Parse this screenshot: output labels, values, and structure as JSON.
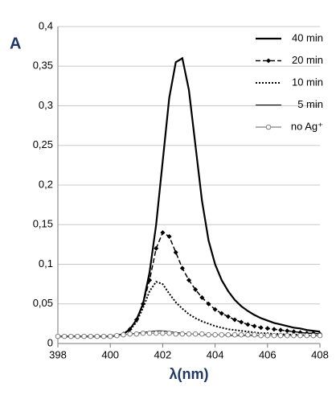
{
  "chart_data": {
    "type": "line",
    "ylabel": "A",
    "xlabel": "λ(nm)",
    "x": [
      398,
      398.25,
      398.5,
      398.75,
      399,
      399.25,
      399.5,
      399.75,
      400,
      400.25,
      400.5,
      400.75,
      401,
      401.25,
      401.5,
      401.75,
      402,
      402.25,
      402.5,
      402.75,
      403,
      403.25,
      403.5,
      403.75,
      404,
      404.25,
      404.5,
      404.75,
      405,
      405.25,
      405.5,
      405.75,
      406,
      406.25,
      406.5,
      406.75,
      407,
      407.25,
      407.5,
      407.75,
      408
    ],
    "xlim": [
      398,
      408
    ],
    "xticks": [
      398,
      400,
      402,
      404,
      406,
      408
    ],
    "ylim": [
      0,
      0.4
    ],
    "yticks": [
      {
        "value": 0,
        "label": "0"
      },
      {
        "value": 0.05,
        "label": "0,05"
      },
      {
        "value": 0.1,
        "label": "0,1"
      },
      {
        "value": 0.15,
        "label": "0,15"
      },
      {
        "value": 0.2,
        "label": "0,2"
      },
      {
        "value": 0.25,
        "label": "0,25"
      },
      {
        "value": 0.3,
        "label": "0,3"
      },
      {
        "value": 0.35,
        "label": "0,35"
      },
      {
        "value": 0.4,
        "label": "0,4"
      }
    ],
    "grid": true,
    "legend": "upper right",
    "series": [
      {
        "name": "40 min",
        "color": "#000000",
        "style": "solid",
        "width": 2.2,
        "values": [
          0.009,
          0.009,
          0.009,
          0.009,
          0.009,
          0.009,
          0.009,
          0.009,
          0.009,
          0.01,
          0.012,
          0.018,
          0.03,
          0.05,
          0.09,
          0.15,
          0.23,
          0.31,
          0.355,
          0.36,
          0.32,
          0.25,
          0.18,
          0.13,
          0.1,
          0.08,
          0.066,
          0.055,
          0.047,
          0.041,
          0.036,
          0.032,
          0.029,
          0.026,
          0.024,
          0.022,
          0.02,
          0.019,
          0.017,
          0.016,
          0.015
        ]
      },
      {
        "name": "20 min",
        "color": "#000000",
        "style": "dashed",
        "width": 1.5,
        "marker": "diamond",
        "values": [
          0.009,
          0.009,
          0.009,
          0.009,
          0.009,
          0.009,
          0.009,
          0.009,
          0.009,
          0.01,
          0.012,
          0.018,
          0.03,
          0.05,
          0.08,
          0.12,
          0.14,
          0.135,
          0.115,
          0.095,
          0.08,
          0.068,
          0.058,
          0.05,
          0.043,
          0.038,
          0.034,
          0.03,
          0.027,
          0.024,
          0.022,
          0.02,
          0.019,
          0.018,
          0.017,
          0.016,
          0.015,
          0.014,
          0.013,
          0.013,
          0.012
        ]
      },
      {
        "name": "10 min",
        "color": "#000000",
        "style": "dotted",
        "width": 2,
        "values": [
          0.009,
          0.009,
          0.009,
          0.009,
          0.009,
          0.009,
          0.009,
          0.009,
          0.009,
          0.01,
          0.012,
          0.017,
          0.027,
          0.045,
          0.066,
          0.078,
          0.075,
          0.063,
          0.052,
          0.044,
          0.037,
          0.032,
          0.028,
          0.025,
          0.022,
          0.02,
          0.018,
          0.017,
          0.016,
          0.015,
          0.014,
          0.013,
          0.013,
          0.012,
          0.012,
          0.011,
          0.011,
          0.011,
          0.01,
          0.01,
          0.01
        ]
      },
      {
        "name": "5 min",
        "color": "#000000",
        "style": "solid",
        "width": 1,
        "values": [
          0.009,
          0.009,
          0.009,
          0.009,
          0.009,
          0.009,
          0.009,
          0.009,
          0.009,
          0.01,
          0.011,
          0.012,
          0.013,
          0.014,
          0.015,
          0.016,
          0.016,
          0.015,
          0.014,
          0.013,
          0.012,
          0.012,
          0.011,
          0.011,
          0.011,
          0.011,
          0.01,
          0.01,
          0.01,
          0.01,
          0.01,
          0.01,
          0.01,
          0.01,
          0.01,
          0.01,
          0.01,
          0.01,
          0.01,
          0.01,
          0.01
        ]
      },
      {
        "name": "no Ag⁺",
        "color": "#808080",
        "style": "solid",
        "width": 1.2,
        "marker": "circle",
        "values": [
          0.009,
          0.009,
          0.009,
          0.009,
          0.009,
          0.009,
          0.009,
          0.009,
          0.009,
          0.01,
          0.011,
          0.012,
          0.012,
          0.013,
          0.013,
          0.013,
          0.013,
          0.013,
          0.012,
          0.012,
          0.012,
          0.012,
          0.012,
          0.011,
          0.011,
          0.011,
          0.011,
          0.011,
          0.011,
          0.011,
          0.011,
          0.01,
          0.01,
          0.01,
          0.01,
          0.01,
          0.01,
          0.01,
          0.01,
          0.01,
          0.01
        ]
      }
    ]
  }
}
